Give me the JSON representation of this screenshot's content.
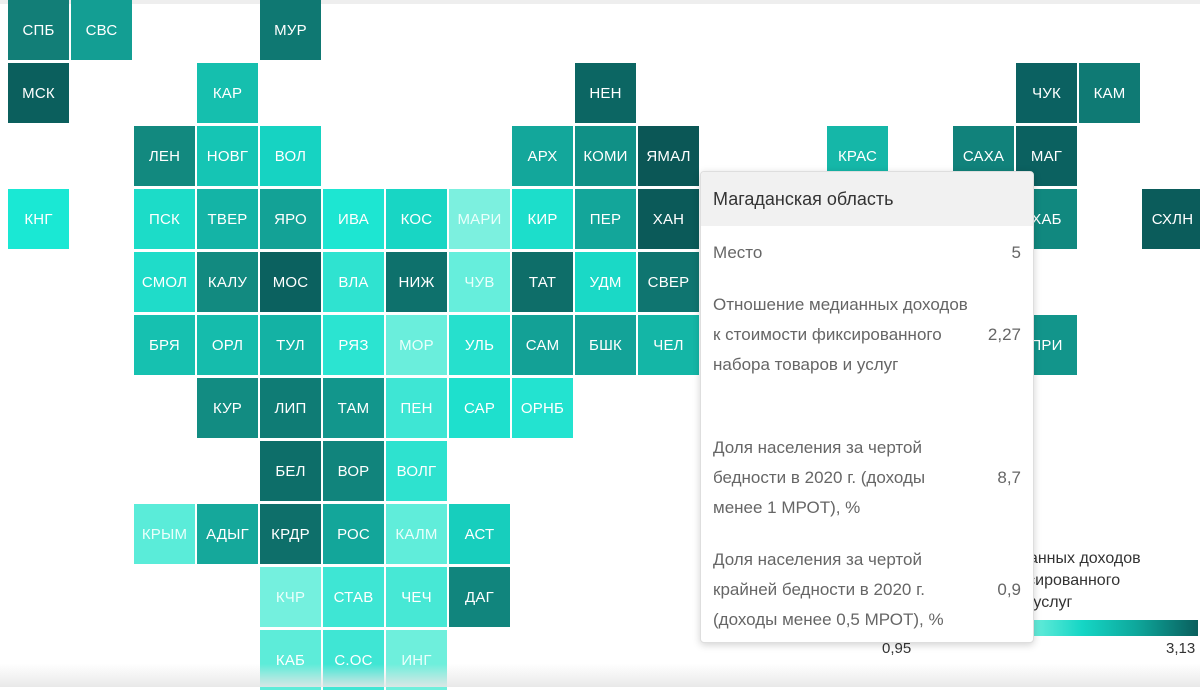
{
  "map": {
    "tiles": [
      {
        "label": "СПБ",
        "color": "#127e77",
        "col": 0,
        "row": 0
      },
      {
        "label": "СВС",
        "color": "#139e93",
        "col": 1,
        "row": 0
      },
      {
        "label": "МУР",
        "color": "#0f7872",
        "col": 4,
        "row": 0
      },
      {
        "label": "МСК",
        "color": "#0b5f5d",
        "col": 0,
        "row": 1
      },
      {
        "label": "КАР",
        "color": "#15bfae",
        "col": 3,
        "row": 1
      },
      {
        "label": "НЕН",
        "color": "#0c6663",
        "col": 9,
        "row": 1
      },
      {
        "label": "ЧУК",
        "color": "#0b6161",
        "col": 16,
        "row": 1
      },
      {
        "label": "КАМ",
        "color": "#0f7a74",
        "col": 17,
        "row": 1
      },
      {
        "label": "ЛЕН",
        "color": "#12897f",
        "col": 2,
        "row": 2
      },
      {
        "label": "НОВГ",
        "color": "#15c5b4",
        "col": 3,
        "row": 2
      },
      {
        "label": "ВОЛ",
        "color": "#16d3c2",
        "col": 4,
        "row": 2
      },
      {
        "label": "АРХ",
        "color": "#13a79b",
        "col": 8,
        "row": 2
      },
      {
        "label": "КОМИ",
        "color": "#109086",
        "col": 9,
        "row": 2
      },
      {
        "label": "ЯМАЛ",
        "color": "#0b5756",
        "col": 10,
        "row": 2
      },
      {
        "label": "КРАС",
        "color": "#15b7a8",
        "col": 13,
        "row": 2
      },
      {
        "label": "САХА",
        "color": "#11827b",
        "col": 15,
        "row": 2
      },
      {
        "label": "МАГ",
        "color": "#0b6160",
        "col": 16,
        "row": 2
      },
      {
        "label": "КНГ",
        "color": "#1ae8d4",
        "col": 0,
        "row": 3
      },
      {
        "label": "ПСК",
        "color": "#1cdcc8",
        "col": 2,
        "row": 3
      },
      {
        "label": "ТВЕР",
        "color": "#14b4a6",
        "col": 3,
        "row": 3
      },
      {
        "label": "ЯРО",
        "color": "#13a296",
        "col": 4,
        "row": 3
      },
      {
        "label": "ИВА",
        "color": "#1de6d2",
        "col": 5,
        "row": 3
      },
      {
        "label": "КОС",
        "color": "#18d6c4",
        "col": 6,
        "row": 3
      },
      {
        "label": "МАРИ",
        "color": "#7cf0df",
        "col": 7,
        "row": 3,
        "light": true
      },
      {
        "label": "КИР",
        "color": "#1cdecb",
        "col": 8,
        "row": 3
      },
      {
        "label": "ПЕР",
        "color": "#13a69a",
        "col": 9,
        "row": 3
      },
      {
        "label": "ХАН",
        "color": "#0b5a59",
        "col": 10,
        "row": 3
      },
      {
        "label": "ХАБ",
        "color": "#11887f",
        "col": 16,
        "row": 3
      },
      {
        "label": "СХЛН",
        "color": "#0b5c5b",
        "col": 18,
        "row": 3
      },
      {
        "label": "СМОЛ",
        "color": "#1fdcc9",
        "col": 2,
        "row": 4
      },
      {
        "label": "КАЛУ",
        "color": "#128a80",
        "col": 3,
        "row": 4
      },
      {
        "label": "МОС",
        "color": "#0b615f",
        "col": 4,
        "row": 4
      },
      {
        "label": "ВЛА",
        "color": "#2fe3d0",
        "col": 5,
        "row": 4
      },
      {
        "label": "НИЖ",
        "color": "#0e716c",
        "col": 6,
        "row": 4
      },
      {
        "label": "ЧУВ",
        "color": "#66eedc",
        "col": 7,
        "row": 4,
        "light": true
      },
      {
        "label": "ТАТ",
        "color": "#0e6e69",
        "col": 8,
        "row": 4
      },
      {
        "label": "УДМ",
        "color": "#1ad9c6",
        "col": 9,
        "row": 4
      },
      {
        "label": "СВЕР",
        "color": "#0f7570",
        "col": 10,
        "row": 4
      },
      {
        "label": "БРЯ",
        "color": "#16c1b0",
        "col": 2,
        "row": 5
      },
      {
        "label": "ОРЛ",
        "color": "#15bcac",
        "col": 3,
        "row": 5
      },
      {
        "label": "ТУЛ",
        "color": "#14b2a4",
        "col": 4,
        "row": 5
      },
      {
        "label": "РЯЗ",
        "color": "#2be4d1",
        "col": 5,
        "row": 5
      },
      {
        "label": "МОР",
        "color": "#6aeedc",
        "col": 6,
        "row": 5,
        "light": true
      },
      {
        "label": "УЛЬ",
        "color": "#26e0cd",
        "col": 7,
        "row": 5
      },
      {
        "label": "САМ",
        "color": "#13a196",
        "col": 8,
        "row": 5
      },
      {
        "label": "БШК",
        "color": "#13a398",
        "col": 9,
        "row": 5
      },
      {
        "label": "ЧЕЛ",
        "color": "#14b6a6",
        "col": 10,
        "row": 5
      },
      {
        "label": "ПРИ",
        "color": "#12958b",
        "col": 16,
        "row": 5
      },
      {
        "label": "КУР",
        "color": "#128c82",
        "col": 3,
        "row": 6
      },
      {
        "label": "ЛИП",
        "color": "#0f7c75",
        "col": 4,
        "row": 6
      },
      {
        "label": "ТАМ",
        "color": "#12968c",
        "col": 5,
        "row": 6
      },
      {
        "label": "ПЕН",
        "color": "#3ee6d4",
        "col": 6,
        "row": 6
      },
      {
        "label": "САР",
        "color": "#1ee0cd",
        "col": 7,
        "row": 6
      },
      {
        "label": "ОРНБ",
        "color": "#23e3d0",
        "col": 8,
        "row": 6
      },
      {
        "label": "БЕЛ",
        "color": "#0d6e69",
        "col": 4,
        "row": 7
      },
      {
        "label": "ВОР",
        "color": "#11847c",
        "col": 5,
        "row": 7
      },
      {
        "label": "ВОЛГ",
        "color": "#2ee2cf",
        "col": 6,
        "row": 7
      },
      {
        "label": "КРЫМ",
        "color": "#5aecd9",
        "col": 2,
        "row": 8,
        "light": true
      },
      {
        "label": "АДЫГ",
        "color": "#15a89b",
        "col": 3,
        "row": 8
      },
      {
        "label": "КРДР",
        "color": "#0e6f6a",
        "col": 4,
        "row": 8
      },
      {
        "label": "РОС",
        "color": "#13a69a",
        "col": 5,
        "row": 8
      },
      {
        "label": "КАЛМ",
        "color": "#60edda",
        "col": 6,
        "row": 8,
        "light": true
      },
      {
        "label": "АСТ",
        "color": "#17cebd",
        "col": 7,
        "row": 8
      },
      {
        "label": "КЧР",
        "color": "#74f0de",
        "col": 4,
        "row": 9,
        "light": true
      },
      {
        "label": "СТАВ",
        "color": "#3ee6d4",
        "col": 5,
        "row": 9
      },
      {
        "label": "ЧЕЧ",
        "color": "#47e8d5",
        "col": 6,
        "row": 9
      },
      {
        "label": "ДАГ",
        "color": "#11857d",
        "col": 7,
        "row": 9
      },
      {
        "label": "КАБ",
        "color": "#5decd9",
        "col": 4,
        "row": 10
      },
      {
        "label": "С.ОС",
        "color": "#3fe6d4",
        "col": 5,
        "row": 10
      },
      {
        "label": "ИНГ",
        "color": "#6eefdc",
        "col": 6,
        "row": 10,
        "light": true
      }
    ]
  },
  "tooltip": {
    "title": "Магаданская область",
    "rows": [
      {
        "label": "Место",
        "value": "5"
      },
      {
        "label": "Отношение медианных доходов к стоимости фиксированного набора товаров и услуг",
        "value": "2,27"
      },
      {
        "label": "Доля населения за чертой бедности в 2020 г. (доходы менее 1 МРОТ), %",
        "value": "8,7"
      },
      {
        "label": "Доля населения за чертой крайней бедности в 2020 г. (доходы менее 0,5 МРОТ), %",
        "value": "0,9"
      }
    ]
  },
  "legend": {
    "title_visible": "ианных доходов\nксированного\nи услуг",
    "min": "0,95",
    "max": "3,13",
    "color_low": "#7df2e0",
    "color_high": "#0a5f5d"
  }
}
